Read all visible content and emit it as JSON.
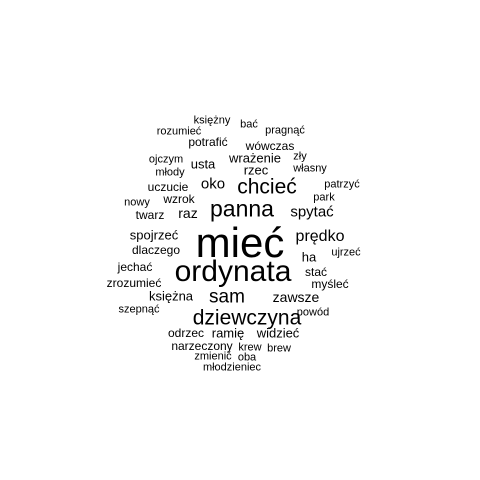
{
  "word_cloud": {
    "words": [
      {
        "text": "mieć",
        "weight": 10
      },
      {
        "text": "ordynata",
        "weight": 7
      },
      {
        "text": "panna",
        "weight": 5.5
      },
      {
        "text": "dziewczyna",
        "weight": 5
      },
      {
        "text": "chcieć",
        "weight": 5
      },
      {
        "text": "sam",
        "weight": 4.5
      },
      {
        "text": "spytać",
        "weight": 3.5
      },
      {
        "text": "prędko",
        "weight": 3.5
      },
      {
        "text": "oko",
        "weight": 3.5
      },
      {
        "text": "zawsze",
        "weight": 3
      },
      {
        "text": "raz",
        "weight": 3
      },
      {
        "text": "wrażenie",
        "weight": 2.5
      },
      {
        "text": "rzec",
        "weight": 2.5
      },
      {
        "text": "usta",
        "weight": 2.5
      },
      {
        "text": "spojrzeć",
        "weight": 2.5
      },
      {
        "text": "ha",
        "weight": 2.5
      },
      {
        "text": "księżna",
        "weight": 2.5
      },
      {
        "text": "ramię",
        "weight": 2.5
      },
      {
        "text": "widzieć",
        "weight": 2.5
      },
      {
        "text": "wówczas",
        "weight": 2
      },
      {
        "text": "potrafić",
        "weight": 2
      },
      {
        "text": "uczucie",
        "weight": 2
      },
      {
        "text": "wzrok",
        "weight": 2
      },
      {
        "text": "twarz",
        "weight": 2
      },
      {
        "text": "dlaczego",
        "weight": 2
      },
      {
        "text": "jechać",
        "weight": 2
      },
      {
        "text": "zrozumieć",
        "weight": 2
      },
      {
        "text": "myśleć",
        "weight": 2
      },
      {
        "text": "stać",
        "weight": 2
      },
      {
        "text": "odrzec",
        "weight": 2
      },
      {
        "text": "narzeczony",
        "weight": 2
      },
      {
        "text": "krew",
        "weight": 1.5
      },
      {
        "text": "brew",
        "weight": 1.5
      },
      {
        "text": "powód",
        "weight": 1.5
      },
      {
        "text": "ujrzeć",
        "weight": 1.5
      },
      {
        "text": "patrzyć",
        "weight": 1.5
      },
      {
        "text": "park",
        "weight": 1.5
      },
      {
        "text": "własny",
        "weight": 1.5
      },
      {
        "text": "zły",
        "weight": 1.5
      },
      {
        "text": "pragnąć",
        "weight": 1.5
      },
      {
        "text": "bać",
        "weight": 1.5
      },
      {
        "text": "księżny",
        "weight": 1.5
      },
      {
        "text": "rozumieć",
        "weight": 1.5
      },
      {
        "text": "ojczym",
        "weight": 1.5
      },
      {
        "text": "młody",
        "weight": 1.5
      },
      {
        "text": "nowy",
        "weight": 1.5
      },
      {
        "text": "szepnąć",
        "weight": 1.5
      },
      {
        "text": "zmienić",
        "weight": 1.5
      },
      {
        "text": "oba",
        "weight": 1.5
      },
      {
        "text": "młodzieniec",
        "weight": 1.5
      }
    ]
  }
}
